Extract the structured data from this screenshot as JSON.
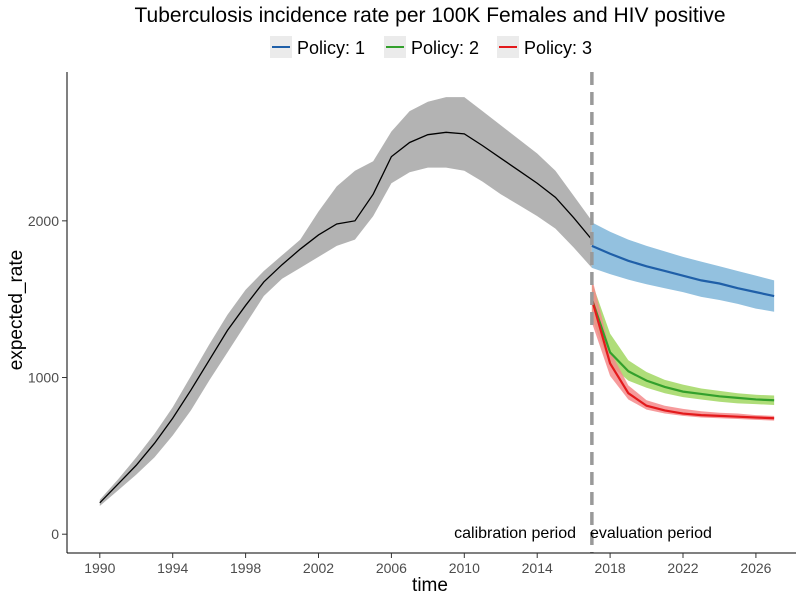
{
  "chart_data": {
    "type": "line",
    "title": "Tuberculosis incidence rate per 100K Females and HIV positive",
    "xlabel": "time",
    "ylabel": "expected_rate",
    "xlim": [
      1988.2,
      2028.2
    ],
    "ylim": [
      -120,
      2950
    ],
    "x_ticks": [
      1990,
      1994,
      1998,
      2002,
      2006,
      2010,
      2014,
      2018,
      2022,
      2026
    ],
    "y_ticks": [
      0,
      1000,
      2000
    ],
    "grid": false,
    "legend": {
      "position": "top",
      "entries": [
        "Policy: 1",
        "Policy: 2",
        "Policy: 3"
      ]
    },
    "divider": {
      "x": 2017,
      "style": "dashed",
      "color": "#999999"
    },
    "annotations": {
      "left": "calibration period",
      "right": "evaluation period"
    },
    "colors": {
      "calibration": "#000000",
      "calibration_band": "#b3b3b3",
      "policy1": "#1f5fa8",
      "policy1_band": "#93c1df",
      "policy2": "#33a02c",
      "policy2_band": "#a6d96a",
      "policy3": "#e31a1c",
      "policy3_band": "#f4898b"
    },
    "calibration": {
      "x": [
        1990,
        1991,
        1992,
        1993,
        1994,
        1995,
        1996,
        1997,
        1998,
        1999,
        2000,
        2001,
        2002,
        2003,
        2004,
        2005,
        2006,
        2007,
        2008,
        2009,
        2010,
        2011,
        2012,
        2013,
        2014,
        2015,
        2016,
        2017
      ],
      "y": [
        200,
        320,
        440,
        580,
        740,
        920,
        1110,
        1300,
        1460,
        1610,
        1720,
        1820,
        1910,
        1980,
        2000,
        2170,
        2410,
        2500,
        2550,
        2565,
        2555,
        2480,
        2400,
        2320,
        2240,
        2150,
        2020,
        1880
      ],
      "lower": [
        180,
        280,
        380,
        490,
        630,
        790,
        980,
        1160,
        1340,
        1520,
        1630,
        1700,
        1770,
        1840,
        1880,
        2030,
        2240,
        2310,
        2340,
        2340,
        2320,
        2250,
        2170,
        2100,
        2030,
        1950,
        1830,
        1700
      ],
      "upper": [
        220,
        350,
        490,
        640,
        810,
        1010,
        1210,
        1400,
        1560,
        1680,
        1780,
        1880,
        2060,
        2220,
        2320,
        2380,
        2570,
        2700,
        2760,
        2790,
        2790,
        2700,
        2610,
        2520,
        2430,
        2320,
        2160,
        2000
      ]
    },
    "series": [
      {
        "name": "Policy: 1",
        "x": [
          2017,
          2018,
          2019,
          2020,
          2021,
          2022,
          2023,
          2024,
          2025,
          2026,
          2027
        ],
        "y": [
          1840,
          1790,
          1745,
          1710,
          1680,
          1650,
          1620,
          1600,
          1570,
          1545,
          1520
        ],
        "lower": [
          1700,
          1660,
          1625,
          1595,
          1570,
          1545,
          1515,
          1495,
          1470,
          1440,
          1420
        ],
        "upper": [
          1990,
          1930,
          1880,
          1840,
          1805,
          1770,
          1740,
          1710,
          1680,
          1650,
          1620
        ]
      },
      {
        "name": "Policy: 2",
        "x": [
          2017,
          2018,
          2019,
          2020,
          2021,
          2022,
          2023,
          2024,
          2025,
          2026,
          2027
        ],
        "y": [
          1500,
          1160,
          1040,
          980,
          940,
          910,
          895,
          880,
          870,
          860,
          855
        ],
        "lower": [
          1380,
          1080,
          980,
          935,
          900,
          875,
          860,
          845,
          835,
          830,
          825
        ],
        "upper": [
          1610,
          1280,
          1110,
          1035,
          985,
          955,
          930,
          915,
          900,
          890,
          885
        ]
      },
      {
        "name": "Policy: 3",
        "x": [
          2017,
          2018,
          2019,
          2020,
          2021,
          2022,
          2023,
          2024,
          2025,
          2026,
          2027
        ],
        "y": [
          1500,
          1090,
          900,
          820,
          790,
          770,
          760,
          755,
          750,
          745,
          740
        ],
        "lower": [
          1350,
          1010,
          860,
          795,
          770,
          755,
          745,
          740,
          735,
          730,
          725
        ],
        "upper": [
          1640,
          1170,
          950,
          855,
          820,
          800,
          785,
          775,
          770,
          760,
          755
        ]
      }
    ]
  }
}
